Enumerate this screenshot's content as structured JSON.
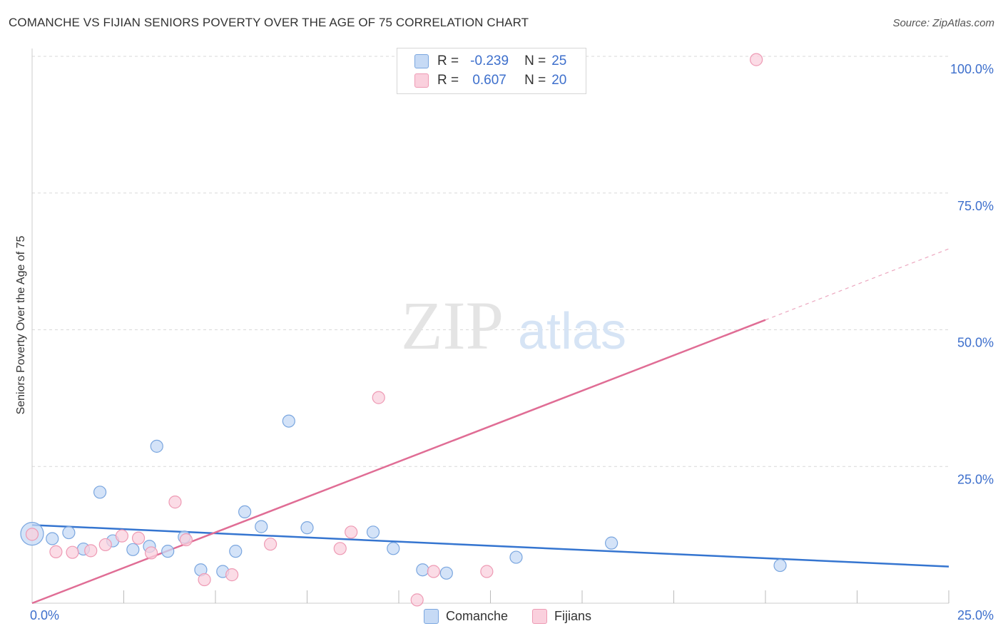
{
  "title": "COMANCHE VS FIJIAN SENIORS POVERTY OVER THE AGE OF 75 CORRELATION CHART",
  "source": "Source: ZipAtlas.com",
  "legend": {
    "series1": {
      "r_label": "R =",
      "r_value": "-0.239",
      "n_label": "N =",
      "n_value": "25"
    },
    "series2": {
      "r_label": "R =",
      "r_value": "0.607",
      "n_label": "N =",
      "n_value": "20"
    }
  },
  "watermark": {
    "zip": "ZIP",
    "atlas": "atlas"
  },
  "chart_data": {
    "type": "scatter",
    "xlabel": "",
    "ylabel": "Seniors Poverty Over the Age of 75",
    "xlim": [
      0,
      25
    ],
    "ylim": [
      0,
      100
    ],
    "x_tick_labels": [
      {
        "value": 0,
        "label": "0.0%"
      },
      {
        "value": 25,
        "label": "25.0%"
      }
    ],
    "y_tick_labels": [
      {
        "value": 25,
        "label": "25.0%"
      },
      {
        "value": 50,
        "label": "50.0%"
      },
      {
        "value": 75,
        "label": "75.0%"
      },
      {
        "value": 100,
        "label": "100.0%"
      }
    ],
    "x_minor_ticks": [
      2.5,
      5,
      7.5,
      10,
      12.5,
      15,
      17.5,
      20,
      22.5,
      25
    ],
    "grid": true,
    "legend_position": "top-center",
    "colors": {
      "comanche_fill": "#c6daf5",
      "comanche_stroke": "#7aa6df",
      "comanche_line": "#3575d0",
      "fijians_fill": "#fad0dd",
      "fijians_stroke": "#ee9ab4",
      "fijians_line": "#e06d95",
      "grid": "#d9d9d9",
      "axis_label": "#3d6fcc"
    },
    "series": [
      {
        "name": "Comanche",
        "points": [
          {
            "x": 0.0,
            "y": 12.7,
            "big": true
          },
          {
            "x": 0.55,
            "y": 11.8
          },
          {
            "x": 1.0,
            "y": 12.9
          },
          {
            "x": 1.4,
            "y": 9.9
          },
          {
            "x": 1.85,
            "y": 20.3
          },
          {
            "x": 2.2,
            "y": 11.4
          },
          {
            "x": 2.75,
            "y": 9.8
          },
          {
            "x": 3.2,
            "y": 10.4
          },
          {
            "x": 3.4,
            "y": 28.7
          },
          {
            "x": 3.7,
            "y": 9.5
          },
          {
            "x": 4.15,
            "y": 12.1
          },
          {
            "x": 4.6,
            "y": 6.1
          },
          {
            "x": 5.2,
            "y": 5.8
          },
          {
            "x": 5.55,
            "y": 9.5
          },
          {
            "x": 5.8,
            "y": 16.7
          },
          {
            "x": 6.25,
            "y": 14.0
          },
          {
            "x": 7.0,
            "y": 33.3
          },
          {
            "x": 7.5,
            "y": 13.8
          },
          {
            "x": 9.3,
            "y": 13.0
          },
          {
            "x": 9.85,
            "y": 10.0
          },
          {
            "x": 10.65,
            "y": 6.1
          },
          {
            "x": 11.3,
            "y": 5.5
          },
          {
            "x": 13.2,
            "y": 8.4
          },
          {
            "x": 15.8,
            "y": 11.0
          },
          {
            "x": 20.4,
            "y": 6.9
          }
        ],
        "trend": {
          "x0": 0,
          "y0": 14.3,
          "x1": 25,
          "y1": 6.7
        }
      },
      {
        "name": "Fijians",
        "points": [
          {
            "x": 0.0,
            "y": 12.6
          },
          {
            "x": 0.65,
            "y": 9.4
          },
          {
            "x": 1.1,
            "y": 9.3
          },
          {
            "x": 1.6,
            "y": 9.6
          },
          {
            "x": 2.0,
            "y": 10.7
          },
          {
            "x": 2.45,
            "y": 12.3
          },
          {
            "x": 2.9,
            "y": 11.9
          },
          {
            "x": 3.25,
            "y": 9.2
          },
          {
            "x": 3.9,
            "y": 18.5
          },
          {
            "x": 4.2,
            "y": 11.6
          },
          {
            "x": 4.7,
            "y": 4.3
          },
          {
            "x": 5.45,
            "y": 5.2
          },
          {
            "x": 6.5,
            "y": 10.8
          },
          {
            "x": 8.4,
            "y": 10.0
          },
          {
            "x": 8.7,
            "y": 13.0
          },
          {
            "x": 9.45,
            "y": 37.6
          },
          {
            "x": 10.5,
            "y": 0.6
          },
          {
            "x": 10.95,
            "y": 5.8
          },
          {
            "x": 12.4,
            "y": 5.8
          },
          {
            "x": 19.75,
            "y": 99.4
          }
        ],
        "trend": {
          "x0": 0,
          "y0": 0.0,
          "x1": 20,
          "y1": 51.8
        },
        "trend_dashed": {
          "x0": 20,
          "y0": 51.8,
          "x1": 25,
          "y1": 64.8
        }
      }
    ]
  }
}
